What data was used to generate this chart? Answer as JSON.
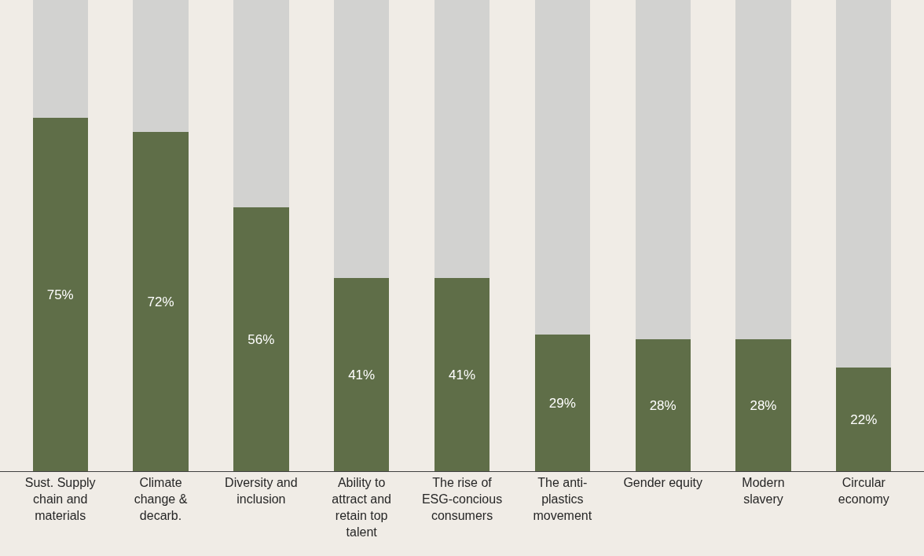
{
  "chart_data": {
    "type": "bar",
    "stacked": true,
    "ylim": [
      0,
      100
    ],
    "categories": [
      "Sust. Supply chain and materials",
      "Climate change & decarb.",
      "Diversity and inclusion",
      "Ability to attract and retain top talent",
      "The rise of ESG-concious consumers",
      "The anti-plastics movement",
      "Gender equity",
      "Modern slavery",
      "Circular economy"
    ],
    "series": [
      {
        "color": "#5f6e48",
        "values": [
          75,
          72,
          56,
          41,
          41,
          29,
          28,
          28,
          22
        ],
        "value_labels": [
          "75%",
          "72%",
          "56%",
          "41%",
          "41%",
          "29%",
          "28%",
          "28%",
          "22%"
        ]
      },
      {
        "color": "#d2d2d0",
        "values": [
          25,
          28,
          44,
          59,
          59,
          71,
          72,
          72,
          78
        ]
      }
    ]
  }
}
